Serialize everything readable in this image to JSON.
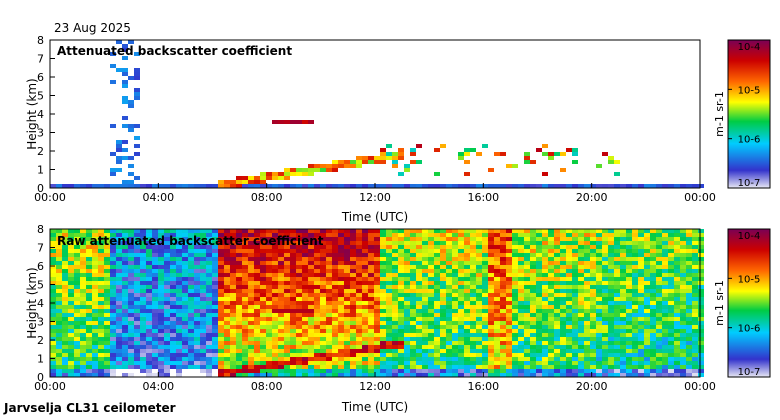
{
  "header": {
    "date": "23 Aug 2025"
  },
  "footer": {
    "station": "Jarvselja CL31 ceilometer"
  },
  "colors": {
    "background": "#ffffff",
    "colormap": [
      "#e8e8f4",
      "#3333cc",
      "#00ccff",
      "#00cc44",
      "#ffff00",
      "#ff6600",
      "#cc0000",
      "#7a0055"
    ]
  },
  "chart_data": [
    {
      "type": "heatmap",
      "title": "Attenuated backscatter coefficient",
      "xlabel": "Time (UTC)",
      "ylabel": "Height (km)",
      "x_ticks": [
        "00:00",
        "04:00",
        "08:00",
        "12:00",
        "16:00",
        "20:00",
        "00:00"
      ],
      "x_range_hours": [
        0,
        24
      ],
      "y_ticks": [
        "0",
        "1",
        "2",
        "3",
        "4",
        "5",
        "6",
        "7",
        "8"
      ],
      "ylim_km": [
        0,
        8
      ],
      "colorbar": {
        "label": "m-1 sr-1",
        "ticks": [
          "10-7",
          "10-6",
          "10-5",
          "10-4"
        ],
        "range": [
          1e-07,
          0.0001
        ]
      },
      "features": [
        {
          "desc": "aerosol layer",
          "start_h": 0,
          "end_h": 24,
          "height_km": 0.3
        },
        {
          "desc": "rain streaks",
          "start_h": 2.2,
          "end_h": 3.3,
          "height_km": [
            0,
            7.5
          ]
        },
        {
          "desc": "rising boundary layer",
          "start_h": 6,
          "end_h": 13,
          "height_km": [
            0.2,
            2.2
          ]
        },
        {
          "desc": "cloud layer",
          "start_h": 8,
          "end_h": 9.5,
          "height_km": 3.7
        },
        {
          "desc": "cloud base",
          "start_h": 12,
          "end_h": 21,
          "height_km": [
            1,
            2.5
          ]
        }
      ]
    },
    {
      "type": "heatmap",
      "title": "Raw attenuated backscatter coefficient",
      "xlabel": "Time (UTC)",
      "ylabel": "Height (km)",
      "x_ticks": [
        "00:00",
        "04:00",
        "08:00",
        "12:00",
        "16:00",
        "20:00",
        "00:00"
      ],
      "x_range_hours": [
        0,
        24
      ],
      "y_ticks": [
        "0",
        "1",
        "2",
        "3",
        "4",
        "5",
        "6",
        "7",
        "8"
      ],
      "ylim_km": [
        0,
        8
      ],
      "colorbar": {
        "label": "m-1 sr-1",
        "ticks": [
          "10-7",
          "10-6",
          "10-5",
          "10-4"
        ],
        "range": [
          1e-07,
          0.0001
        ]
      },
      "features": [
        {
          "desc": "high noise",
          "start_h": 6,
          "end_h": 12,
          "height_km": [
            2,
            8
          ]
        },
        {
          "desc": "low noise",
          "start_h": 2,
          "end_h": 6,
          "height_km": [
            0,
            8
          ]
        },
        {
          "desc": "rain streaks",
          "start_h": 2.5,
          "end_h": 4,
          "height_km": [
            0,
            8
          ]
        },
        {
          "desc": "cloud base",
          "start_h": 16,
          "end_h": 21,
          "height_km": [
            1,
            2
          ]
        }
      ]
    }
  ]
}
